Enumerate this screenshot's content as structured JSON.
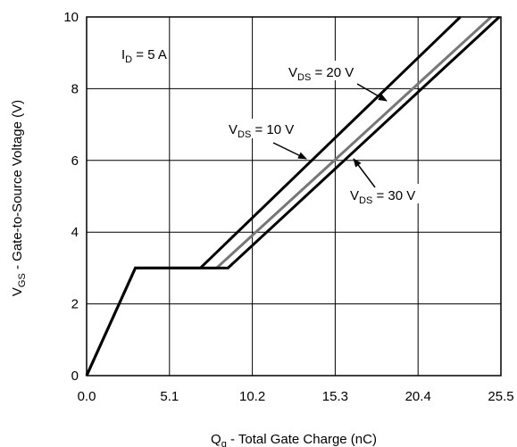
{
  "chart_data": {
    "type": "line",
    "xlabel": {
      "main": "Q",
      "sub": "g",
      "rest": " - Total Gate Charge (nC)"
    },
    "ylabel": {
      "main": "V",
      "sub": "GS",
      "rest": " - Gate-to-Source Voltage (V)"
    },
    "xlim": [
      0,
      25.5
    ],
    "ylim": [
      0,
      10
    ],
    "xticks": [
      0,
      5.1,
      10.2,
      15.3,
      20.4,
      25.5
    ],
    "xtick_labels": [
      "0.0",
      "5.1",
      "10.2",
      "15.3",
      "20.4",
      "25.5"
    ],
    "yticks": [
      0,
      2,
      4,
      6,
      8,
      10
    ],
    "ytick_labels": [
      "0",
      "2",
      "4",
      "6",
      "8",
      "10"
    ],
    "grid": true,
    "series": [
      {
        "name": "VDS = 10 V",
        "color": "#000000",
        "x": [
          0,
          3.0,
          7.0,
          23.0
        ],
        "y": [
          0,
          3,
          3,
          10
        ]
      },
      {
        "name": "VDS = 20 V",
        "color": "#777777",
        "x": [
          0,
          3.0,
          8.0,
          24.9
        ],
        "y": [
          0,
          3,
          3,
          10
        ]
      },
      {
        "name": "VDS = 30 V",
        "color": "#000000",
        "x": [
          0,
          3.0,
          8.7,
          25.4
        ],
        "y": [
          0,
          3,
          3,
          10
        ]
      }
    ],
    "annotations": [
      {
        "main": "I",
        "sub": "D",
        "rest": " = 5 A"
      },
      {
        "main": "V",
        "sub": "DS",
        "rest": " = 20 V"
      },
      {
        "main": "V",
        "sub": "DS",
        "rest": " = 10 V"
      },
      {
        "main": "V",
        "sub": "DS",
        "rest": " = 30 V"
      }
    ]
  }
}
